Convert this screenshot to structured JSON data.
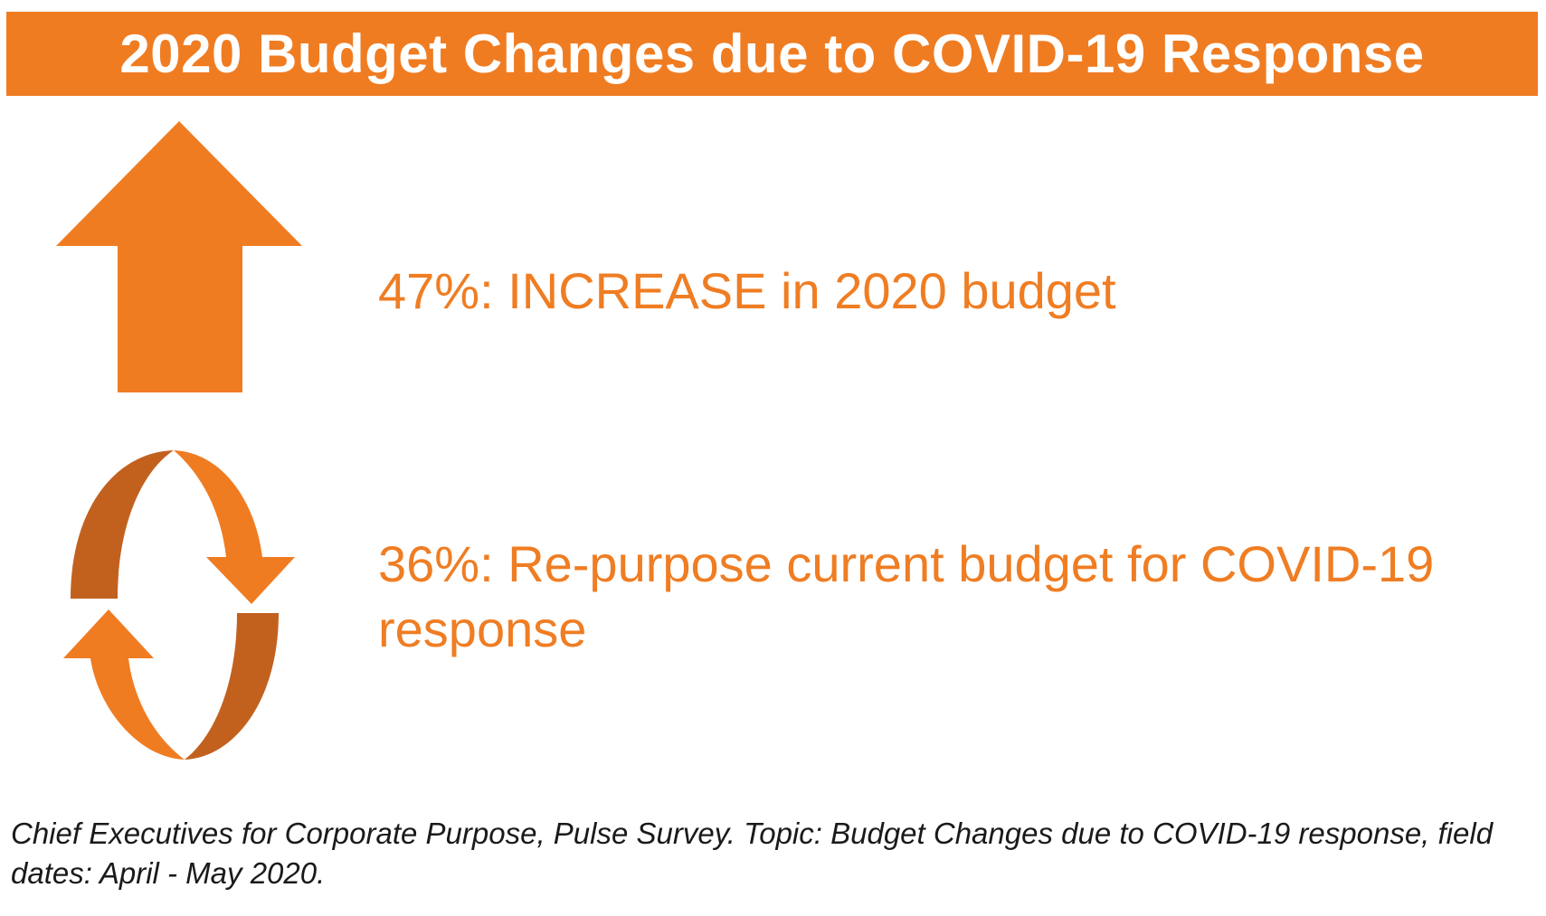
{
  "chart_data": {
    "type": "infographic",
    "title": "2020 Budget Changes due to COVID-19 Response",
    "items": [
      {
        "percent": 47,
        "text": "47%: INCREASE in 2020 budget",
        "icon": "up-arrow-icon"
      },
      {
        "percent": 36,
        "text": "36%: Re-purpose current budget for COVID-19 response",
        "icon": "cycle-arrows-icon"
      }
    ],
    "source": "Chief Executives for Corporate Purpose, Pulse Survey. Topic: Budget Changes due to COVID-19 response, field dates: April - May 2020."
  },
  "colors": {
    "accent": "#f07c22",
    "accent_dark": "#c2611e",
    "banner_text": "#ffffff",
    "source_text": "#1a1a1a"
  }
}
